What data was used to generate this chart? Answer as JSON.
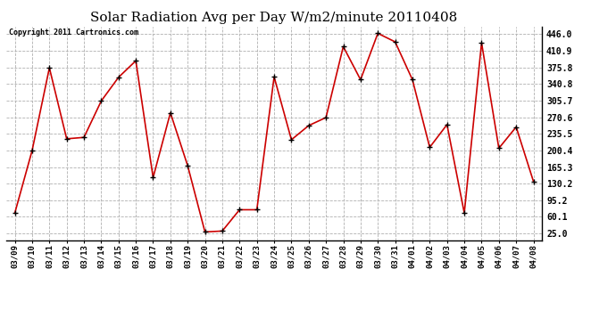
{
  "title": "Solar Radiation Avg per Day W/m2/minute 20110408",
  "copyright": "Copyright 2011 Cartronics.com",
  "labels": [
    "03/09",
    "03/10",
    "03/11",
    "03/12",
    "03/13",
    "03/14",
    "03/15",
    "03/16",
    "03/17",
    "03/18",
    "03/19",
    "03/20",
    "03/21",
    "03/22",
    "03/23",
    "03/24",
    "03/25",
    "03/26",
    "03/27",
    "03/28",
    "03/29",
    "03/30",
    "03/31",
    "04/01",
    "04/02",
    "04/03",
    "04/04",
    "04/05",
    "04/06",
    "04/07",
    "04/08"
  ],
  "values": [
    68,
    200,
    375,
    225,
    228,
    305,
    355,
    390,
    143,
    280,
    168,
    28,
    30,
    75,
    75,
    356,
    223,
    253,
    270,
    420,
    350,
    448,
    430,
    350,
    207,
    255,
    68,
    428,
    205,
    250,
    135
  ],
  "line_color": "#cc0000",
  "marker_color": "#000000",
  "bg_color": "#ffffff",
  "grid_color": "#b0b0b0",
  "yticks": [
    25.0,
    60.1,
    95.2,
    130.2,
    165.3,
    200.4,
    235.5,
    270.6,
    305.7,
    340.8,
    375.8,
    410.9,
    446.0
  ],
  "ylim": [
    10,
    462
  ],
  "title_fontsize": 11,
  "tick_fontsize": 7,
  "label_fontsize": 6.5,
  "copyright_fontsize": 6
}
